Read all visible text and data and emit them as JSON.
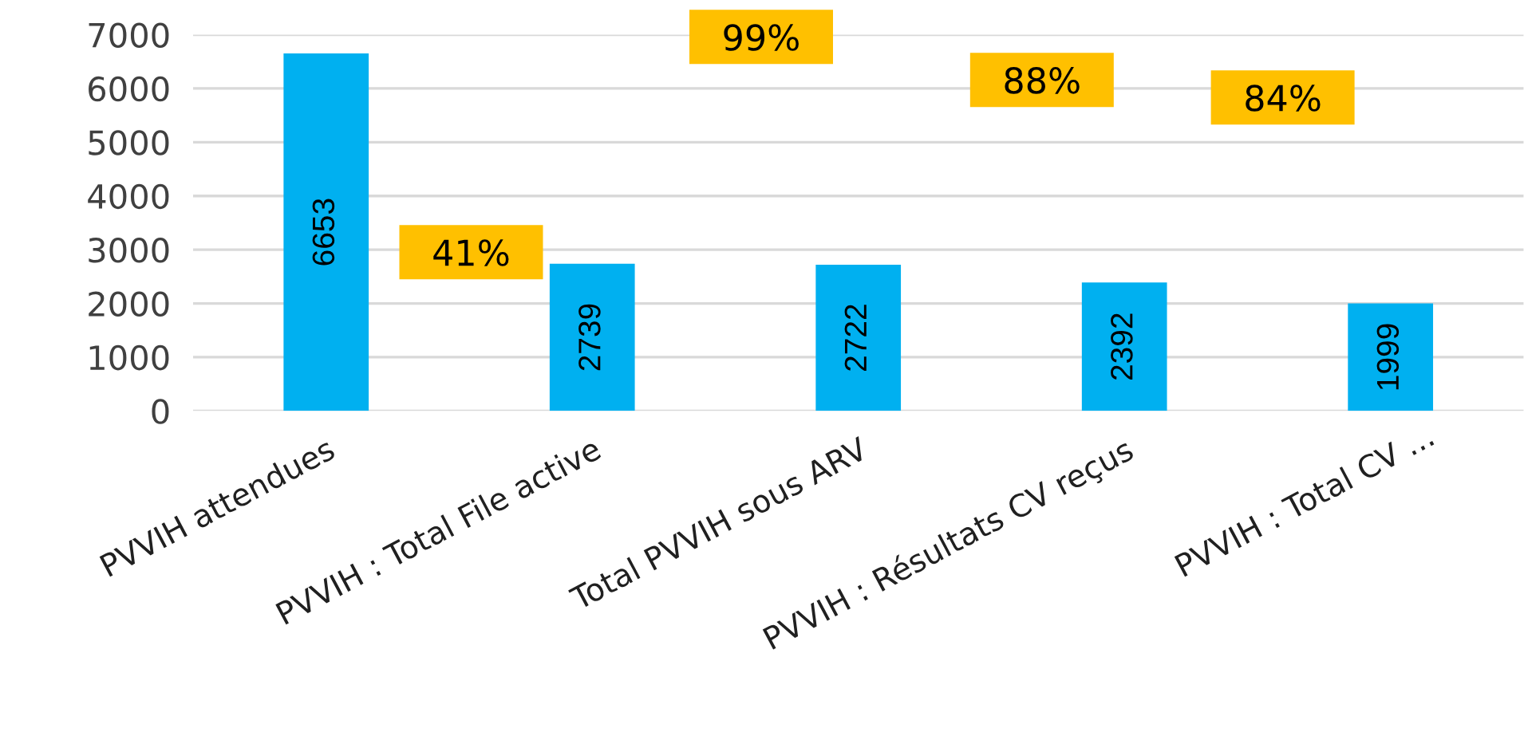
{
  "chart_data": {
    "type": "bar",
    "categories": [
      "PVVIH attendues",
      "PVVIH : Total File active",
      "Total PVVIH sous ARV",
      "PVVIH : Résultats CV reçus",
      "PVVIH : Total CV ..."
    ],
    "values": [
      6653,
      2739,
      2722,
      2392,
      1999
    ],
    "color": "#00b0f0",
    "data_labels": true,
    "ylim": [
      0,
      7000
    ],
    "yticks": [
      0,
      1000,
      2000,
      3000,
      4000,
      5000,
      6000,
      7000
    ],
    "grid": "y",
    "annotations": [
      "41%",
      "99%",
      "88%",
      "84%"
    ]
  }
}
